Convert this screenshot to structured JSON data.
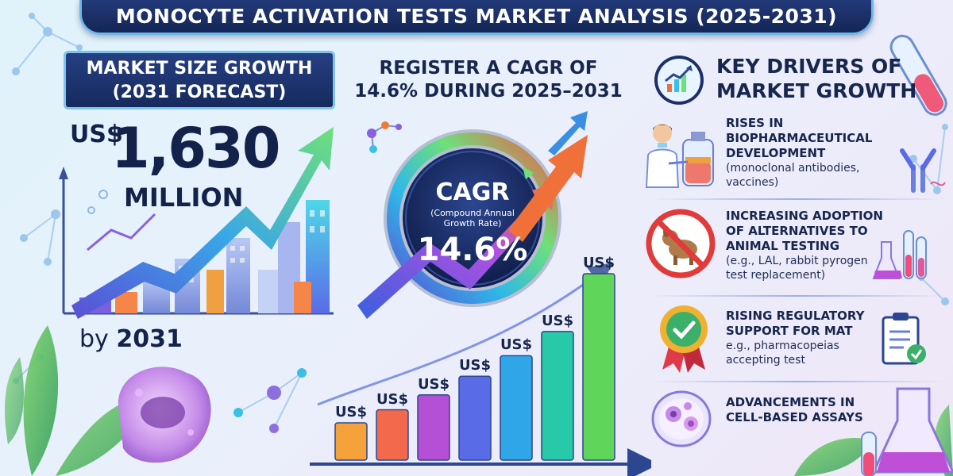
{
  "title": "MONOCYTE ACTIVATION TESTS MARKET ANALYSIS (2025-2031)",
  "market_size": {
    "heading_line1": "MARKET SIZE GROWTH",
    "heading_line2": "(2031 FORECAST)",
    "currency": "US$",
    "value": "1,630",
    "unit": "MILLION",
    "by_prefix": "by",
    "by_year": "2031"
  },
  "cagr": {
    "heading_line1": "REGISTER A CAGR OF",
    "heading_line2": "14.6% DURING 2025–2031",
    "gauge_label": "CAGR",
    "gauge_sub_line1": "(Compound Annual",
    "gauge_sub_line2": "Growth Rate)",
    "gauge_value": "14.6%"
  },
  "bars": {
    "label": "US$",
    "heights": [
      0.2,
      0.27,
      0.35,
      0.45,
      0.56,
      0.69,
      1.0
    ],
    "colors": [
      "#f5a23a",
      "#f26a4b",
      "#b44fd6",
      "#5a6be8",
      "#2fa6e8",
      "#28c9a8",
      "#5fd65a"
    ]
  },
  "drivers": {
    "heading_line1": "KEY DRIVERS OF",
    "heading_line2": "MARKET GROWTH",
    "items": [
      {
        "title_lines": [
          "RISES IN",
          "BIOPHARMACEUTICAL",
          "DEVELOPMENT"
        ],
        "desc_lines": [
          "(monoclonal antibodies,",
          "vaccines)"
        ],
        "icon": "lab-scientist-icon"
      },
      {
        "title_lines": [
          "INCREASING ADOPTION",
          "OF ALTERNATIVES TO",
          "ANIMAL TESTING"
        ],
        "desc_lines": [
          "(e.g., LAL, rabbit pyrogen",
          "test replacement)"
        ],
        "icon": "no-animal-testing-icon"
      },
      {
        "title_lines": [
          "RISING REGULATORY",
          "SUPPORT FOR MAT"
        ],
        "desc_lines": [
          "e.g., pharmacopeias",
          "accepting test"
        ],
        "icon": "approval-badge-icon"
      },
      {
        "title_lines": [
          "ADVANCEMENTS IN",
          "CELL-BASED ASSAYS"
        ],
        "desc_lines": [],
        "icon": "cell-petri-dish-icon"
      }
    ]
  }
}
